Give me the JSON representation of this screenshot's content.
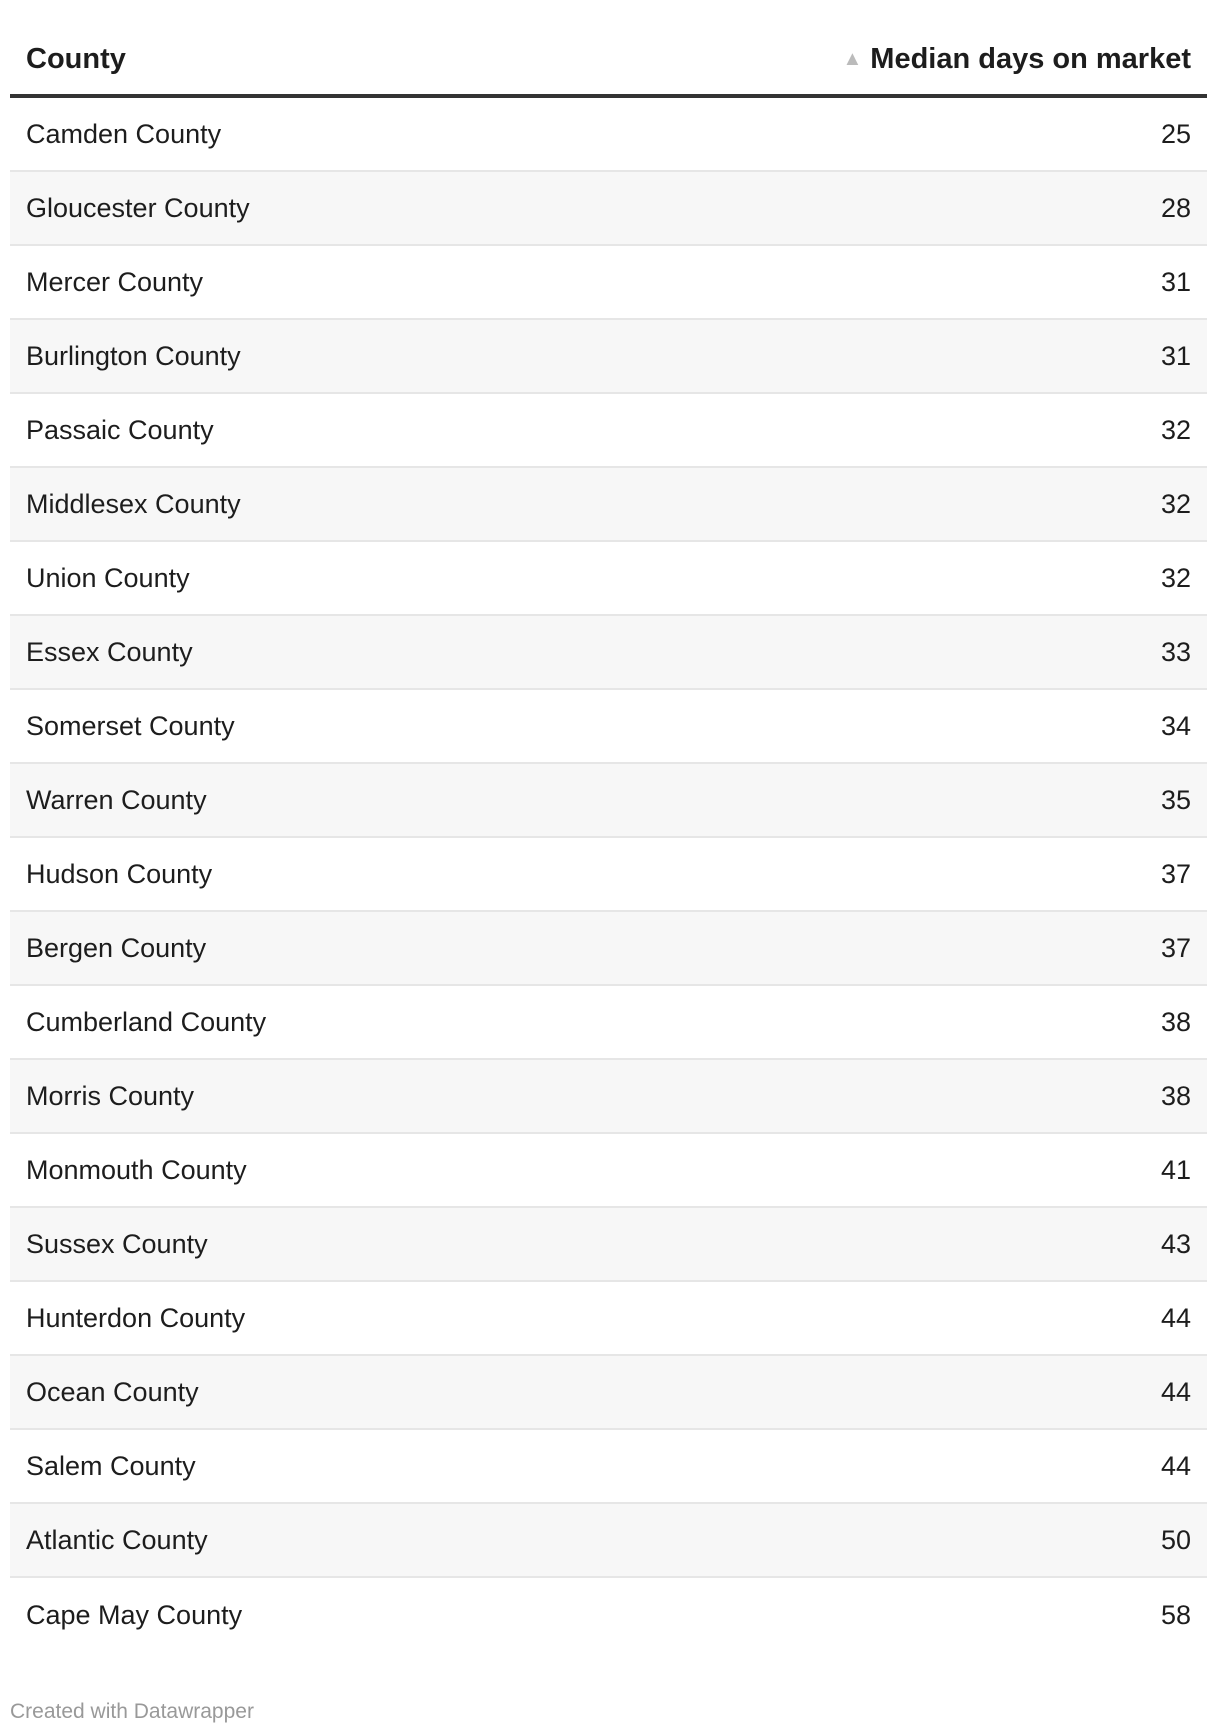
{
  "header": {
    "county": "County",
    "median_days": "Median days on market",
    "sort_icon": "sort-ascending-triangle"
  },
  "rows": [
    {
      "county": "Camden County",
      "days": "25"
    },
    {
      "county": "Gloucester County",
      "days": "28"
    },
    {
      "county": "Mercer County",
      "days": "31"
    },
    {
      "county": "Burlington County",
      "days": "31"
    },
    {
      "county": "Passaic County",
      "days": "32"
    },
    {
      "county": "Middlesex County",
      "days": "32"
    },
    {
      "county": "Union County",
      "days": "32"
    },
    {
      "county": "Essex County",
      "days": "33"
    },
    {
      "county": "Somerset County",
      "days": "34"
    },
    {
      "county": "Warren County",
      "days": "35"
    },
    {
      "county": "Hudson County",
      "days": "37"
    },
    {
      "county": "Bergen County",
      "days": "37"
    },
    {
      "county": "Cumberland County",
      "days": "38"
    },
    {
      "county": "Morris County",
      "days": "38"
    },
    {
      "county": "Monmouth County",
      "days": "41"
    },
    {
      "county": "Sussex County",
      "days": "43"
    },
    {
      "county": "Hunterdon County",
      "days": "44"
    },
    {
      "county": "Ocean County",
      "days": "44"
    },
    {
      "county": "Salem County",
      "days": "44"
    },
    {
      "county": "Atlantic County",
      "days": "50"
    },
    {
      "county": "Cape May County",
      "days": "58"
    }
  ],
  "footer": "Created with Datawrapper"
}
